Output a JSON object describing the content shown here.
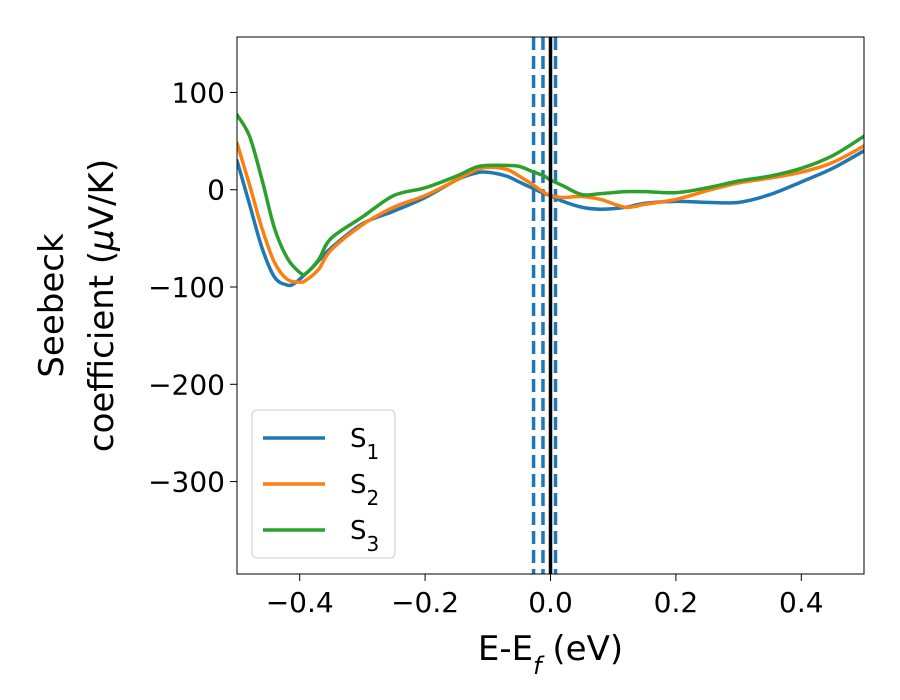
{
  "chart_data": {
    "type": "line",
    "title": "",
    "xlabel": {
      "main": "E-E",
      "sub": "f",
      "unit": " (eV)"
    },
    "ylabel": {
      "line1": "Seebeck",
      "line2_prefix": "coefficient  (",
      "mu": "μ",
      "line2_suffix": "V/K)"
    },
    "xlim": [
      -0.5,
      0.5
    ],
    "ylim": [
      -395,
      157
    ],
    "xticks": [
      -0.4,
      -0.2,
      0.0,
      0.2,
      0.4
    ],
    "xtick_labels": [
      "−0.4",
      "−0.2",
      "0.0",
      "0.2",
      "0.4"
    ],
    "yticks": [
      100,
      0,
      -100,
      -200,
      -300
    ],
    "ytick_labels": [
      "100",
      "0",
      "−100",
      "−200",
      "−300"
    ],
    "grid": false,
    "legend_position": "lower-left",
    "vlines": [
      {
        "x": -0.027,
        "style": "dashed",
        "color": "#1f77b4"
      },
      {
        "x": -0.012,
        "style": "dashed",
        "color": "#1f77b4"
      },
      {
        "x": 0.008,
        "style": "dashed",
        "color": "#1f77b4"
      },
      {
        "x": 0.0,
        "style": "solid",
        "color": "#000000"
      }
    ],
    "series": [
      {
        "name": "S",
        "sub": "1",
        "color": "#1f77b4",
        "x": [
          -0.5,
          -0.48,
          -0.46,
          -0.44,
          -0.42,
          -0.41,
          -0.4,
          -0.38,
          -0.35,
          -0.3,
          -0.25,
          -0.2,
          -0.15,
          -0.12,
          -0.1,
          -0.07,
          -0.05,
          -0.03,
          -0.01,
          0.0,
          0.02,
          0.05,
          0.08,
          0.12,
          0.15,
          0.2,
          0.25,
          0.3,
          0.35,
          0.4,
          0.45,
          0.5
        ],
        "y": [
          30,
          -15,
          -60,
          -90,
          -98,
          -97,
          -92,
          -80,
          -60,
          -35,
          -22,
          -8,
          10,
          17,
          18,
          14,
          8,
          2,
          -4,
          -6,
          -12,
          -18,
          -20,
          -18,
          -14,
          -12,
          -13,
          -13,
          -5,
          8,
          22,
          40
        ]
      },
      {
        "name": "S",
        "sub": "2",
        "color": "#ff7f0e",
        "x": [
          -0.5,
          -0.48,
          -0.46,
          -0.44,
          -0.42,
          -0.4,
          -0.39,
          -0.37,
          -0.35,
          -0.3,
          -0.25,
          -0.2,
          -0.15,
          -0.12,
          -0.1,
          -0.07,
          -0.05,
          -0.03,
          -0.01,
          0.0,
          0.02,
          0.05,
          0.08,
          0.12,
          0.15,
          0.2,
          0.25,
          0.3,
          0.35,
          0.4,
          0.45,
          0.5
        ],
        "y": [
          48,
          5,
          -40,
          -75,
          -92,
          -95,
          -93,
          -82,
          -62,
          -36,
          -18,
          -6,
          10,
          20,
          23,
          21,
          14,
          6,
          -3,
          -6,
          -8,
          -7,
          -10,
          -18,
          -15,
          -10,
          -1,
          7,
          12,
          18,
          28,
          45
        ]
      },
      {
        "name": "S",
        "sub": "3",
        "color": "#2ca02c",
        "x": [
          -0.5,
          -0.48,
          -0.46,
          -0.44,
          -0.42,
          -0.4,
          -0.39,
          -0.37,
          -0.35,
          -0.3,
          -0.25,
          -0.2,
          -0.15,
          -0.12,
          -0.1,
          -0.07,
          -0.05,
          -0.03,
          -0.01,
          0.0,
          0.02,
          0.05,
          0.08,
          0.12,
          0.15,
          0.2,
          0.25,
          0.3,
          0.35,
          0.4,
          0.45,
          0.5
        ],
        "y": [
          77,
          55,
          10,
          -40,
          -70,
          -85,
          -86,
          -72,
          -50,
          -28,
          -6,
          2,
          14,
          23,
          25,
          25,
          24,
          19,
          14,
          10,
          4,
          -5,
          -4,
          -2,
          -2,
          -3,
          2,
          9,
          14,
          22,
          35,
          55
        ]
      }
    ]
  }
}
